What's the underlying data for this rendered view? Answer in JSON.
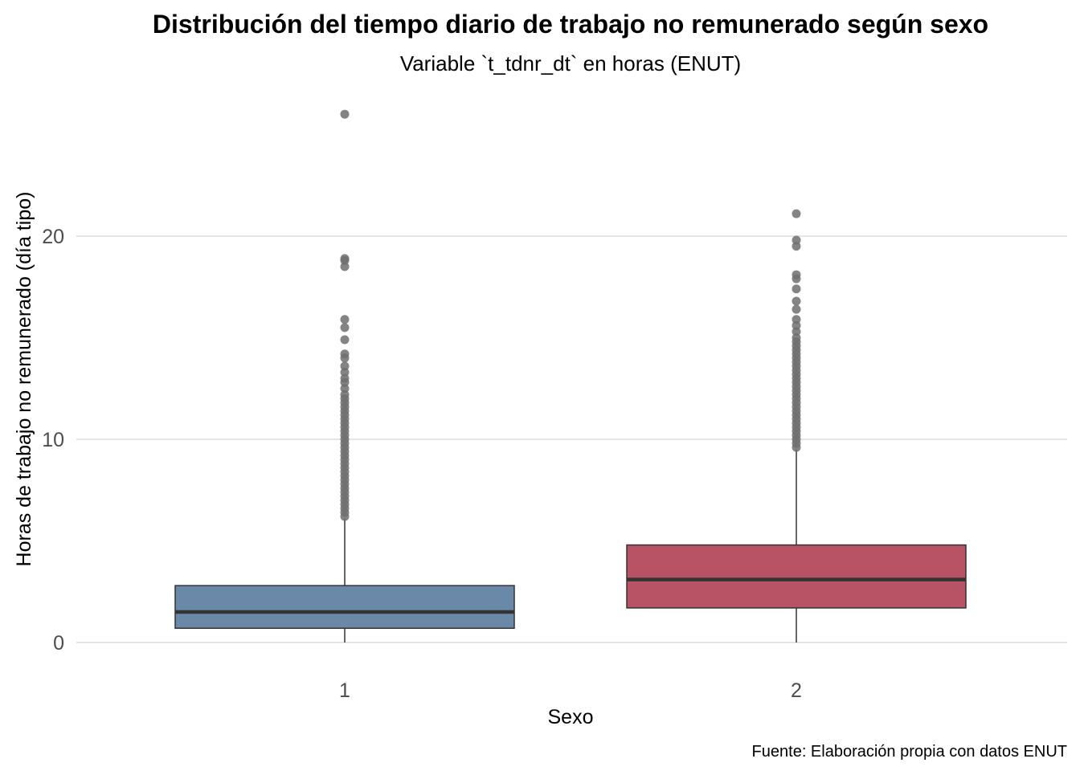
{
  "chart_data": {
    "type": "box",
    "title": "Distribución del tiempo diario de trabajo no remunerado según sexo",
    "subtitle": "Variable `t_tdnr_dt` en horas (ENUT)",
    "caption": "Fuente: Elaboración propia con datos ENUT",
    "xlabel": "Sexo",
    "ylabel": "Horas de trabajo no remunerado (día tipo)",
    "categories": [
      "1",
      "2"
    ],
    "y_ticks": [
      0,
      10,
      20
    ],
    "ylim": [
      -1.3,
      27.4
    ],
    "grid": "horizontal",
    "legend": "none",
    "colors": {
      "1": "#6A89A8",
      "2": "#B85366",
      "outlier": "#6E6E6E",
      "median": "#333333",
      "grid": "#E5E5E5",
      "axis_text": "#4D4D4D"
    },
    "series": [
      {
        "category": "1",
        "min": 0,
        "q1": 0.7,
        "median": 1.5,
        "q3": 2.8,
        "whisker_high": 6.1,
        "outliers": [
          6.2,
          6.4,
          6.6,
          6.8,
          7.0,
          7.2,
          7.4,
          7.6,
          7.8,
          8.0,
          8.2,
          8.4,
          8.6,
          8.8,
          9.0,
          9.2,
          9.4,
          9.6,
          9.8,
          10.0,
          10.2,
          10.4,
          10.6,
          10.8,
          11.0,
          11.2,
          11.4,
          11.6,
          11.8,
          12.0,
          12.2,
          12.5,
          12.8,
          13.0,
          13.3,
          13.6,
          14.0,
          14.2,
          14.9,
          15.5,
          15.9,
          18.5,
          18.8,
          18.9,
          26.0
        ]
      },
      {
        "category": "2",
        "min": 0,
        "q1": 1.7,
        "median": 3.1,
        "q3": 4.8,
        "whisker_high": 9.5,
        "outliers": [
          9.6,
          9.8,
          10.0,
          10.2,
          10.4,
          10.6,
          10.8,
          11.0,
          11.2,
          11.4,
          11.6,
          11.8,
          12.0,
          12.2,
          12.4,
          12.6,
          12.8,
          13.0,
          13.2,
          13.4,
          13.6,
          13.8,
          14.0,
          14.2,
          14.4,
          14.6,
          14.8,
          15.0,
          15.3,
          15.6,
          15.9,
          16.4,
          16.8,
          17.4,
          17.9,
          18.1,
          19.5,
          19.8,
          21.1
        ]
      }
    ]
  }
}
